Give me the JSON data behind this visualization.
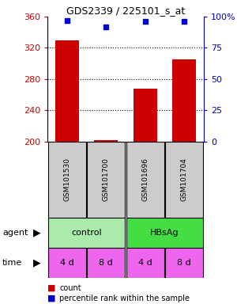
{
  "title": "GDS2339 / 225101_s_at",
  "samples": [
    "GSM101530",
    "GSM101700",
    "GSM101696",
    "GSM101704"
  ],
  "counts": [
    330,
    202,
    268,
    305
  ],
  "percentiles": [
    97,
    92,
    96,
    96
  ],
  "ylim_left": [
    200,
    360
  ],
  "yticks_left": [
    200,
    240,
    280,
    320,
    360
  ],
  "ylim_right": [
    0,
    100
  ],
  "yticks_right": [
    0,
    25,
    50,
    75,
    100
  ],
  "ytick_labels_right": [
    "0",
    "25",
    "50",
    "75",
    "100%"
  ],
  "bar_color": "#cc0000",
  "scatter_color": "#0000cc",
  "agent_color_control": "#aaeaaa",
  "agent_color_hbsag": "#44dd44",
  "time_color": "#ee66ee",
  "sample_box_color": "#cccccc",
  "left_axis_color": "#cc0000",
  "right_axis_color": "#0000cc",
  "bar_width": 0.6,
  "base_value": 200,
  "gridline_ticks": [
    240,
    280,
    320
  ],
  "time_labels": [
    "4 d",
    "8 d",
    "4 d",
    "8 d"
  ]
}
